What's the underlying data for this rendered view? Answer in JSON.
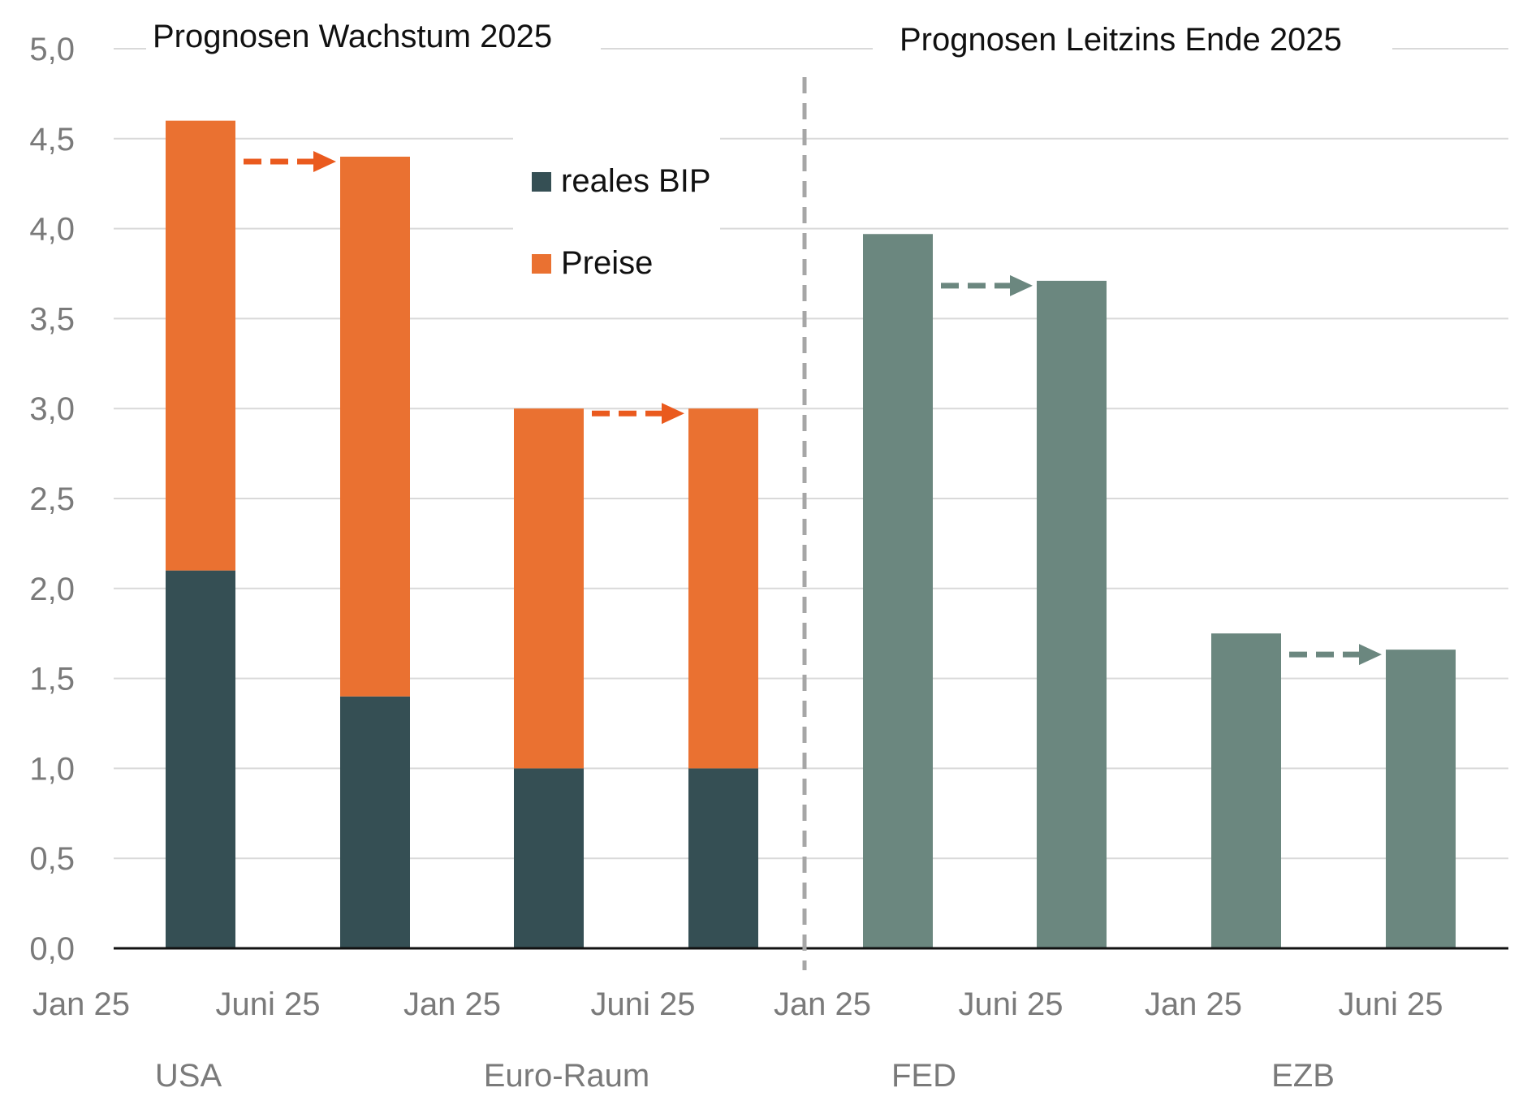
{
  "colors": {
    "real_gdp": "#354f54",
    "prices": "#ea7131",
    "policy_rate": "#6b877f",
    "grid": "#d9d9d9",
    "axis": "#111111",
    "divider": "#a6a6a6",
    "arrow_growth": "#ea5a1e",
    "arrow_rate": "#6b877f"
  },
  "chart_data": {
    "type": "bar",
    "stacked": true,
    "y_ticks": [
      "0,0",
      "0,5",
      "1,0",
      "1,5",
      "2,0",
      "2,5",
      "3,0",
      "3,5",
      "4,0",
      "4,5",
      "5,0"
    ],
    "ylim": [
      0,
      5
    ],
    "grid": true,
    "panels": [
      {
        "title": "Prognosen Wachstum 2025"
      },
      {
        "title": "Prognosen Leitzins Ende 2025"
      }
    ],
    "categories": [
      "Jan 25",
      "Juni 25",
      "Jan 25",
      "Juni 25",
      "Jan 25",
      "Juni 25",
      "Jan 25",
      "Juni 25"
    ],
    "groups": [
      "USA",
      "Euro-Raum",
      "FED",
      "EZB"
    ],
    "series": [
      {
        "name": "reales BIP",
        "values": [
          2.1,
          1.4,
          1.0,
          1.0,
          null,
          null,
          null,
          null
        ]
      },
      {
        "name": "Preise",
        "values": [
          2.5,
          3.0,
          2.0,
          2.0,
          null,
          null,
          null,
          null
        ]
      },
      {
        "name": "",
        "values": [
          null,
          null,
          null,
          null,
          3.97,
          3.71,
          1.75,
          1.66
        ]
      }
    ],
    "legend": {
      "placement": "top-center",
      "items": [
        "reales BIP",
        "Preise"
      ]
    }
  }
}
